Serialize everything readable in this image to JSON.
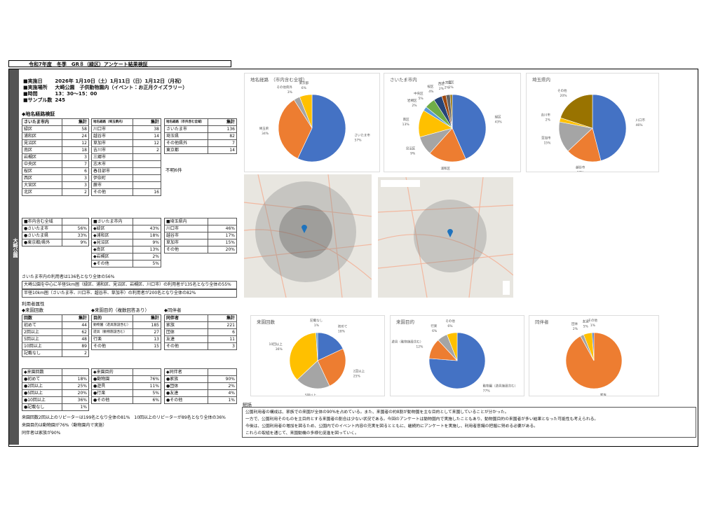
{
  "header": {
    "title": "令和7年度　冬季　GR８（緑区）アンケート結果検証"
  },
  "side_label": "大崎公園",
  "info": [
    {
      "label": "■実施日",
      "value": "2026年 1月10日（土）1月11日（日）1月12日（月祝）"
    },
    {
      "label": "■実施場所",
      "value": "大崎公園　子供動物園内（イベント：お正月クイズラリー）"
    },
    {
      "label": "■時間",
      "value": "13：30〜15：00"
    },
    {
      "label": "■サンプル数",
      "value": "245"
    }
  ],
  "route_heading": "◆地名経路検証",
  "count_tables": [
    {
      "columns": [
        "さいたま市内",
        "集計"
      ],
      "rows": [
        [
          "緑区",
          58
        ],
        [
          "浦和区",
          24
        ],
        [
          "見沼区",
          12
        ],
        [
          "南区",
          18
        ],
        [
          "岩槻区",
          3
        ],
        [
          "中央区",
          7
        ],
        [
          "桜区",
          6
        ],
        [
          "西区",
          3
        ],
        [
          "大宮区",
          3
        ],
        [
          "北区",
          2
        ]
      ]
    },
    {
      "columns": [
        "地名経路（埼玉県内）",
        "集計"
      ],
      "rows": [
        [
          "川口市",
          38
        ],
        [
          "越谷市",
          14
        ],
        [
          "草加市",
          12
        ],
        [
          "吉川市",
          2
        ],
        [
          "三郷市",
          null
        ],
        [
          "志木市",
          null
        ],
        [
          "春日部市",
          null
        ],
        [
          "伊奈町",
          null
        ],
        [
          "蕨市",
          null
        ],
        [
          "その他",
          16
        ]
      ]
    },
    {
      "columns": [
        "地名経路（市外含む全域）",
        "集計"
      ],
      "rows": [
        [
          "さいたま市",
          136
        ],
        [
          "埼玉県",
          82
        ],
        [
          "その他県外",
          7
        ],
        [
          "東京都",
          14
        ]
      ]
    }
  ],
  "unknown_note": "不明6件",
  "percent_tables": [
    {
      "title": "■市内含む全域",
      "rows": [
        [
          "●さいたま市",
          "56%"
        ],
        [
          "●さいたま県",
          "33%"
        ],
        [
          "●東京都/県外",
          "9%"
        ]
      ]
    },
    {
      "title": "■さいたま市内",
      "rows": [
        [
          "◆緑区",
          "43%"
        ],
        [
          "◆浦和区",
          "18%"
        ],
        [
          "◆見沼区",
          "9%"
        ],
        [
          "◆南区",
          "13%"
        ],
        [
          "◆岩槻区",
          "2%"
        ],
        [
          "◆その他",
          "5%"
        ]
      ]
    },
    {
      "title": "■埼玉県内",
      "rows": [
        [
          "川口市",
          "46%"
        ],
        [
          "越谷市",
          "17%"
        ],
        [
          "草加市",
          "15%"
        ],
        [
          "その他",
          "20%"
        ]
      ]
    }
  ],
  "route_notes": [
    "さいたま市内の利用者は136名となり全体の56%",
    "大崎公園を中心に半径5km圏（緑区、浦和区、見沼区、岩槻区、川口市）の利用者が135名となり全体の55%",
    "半径10km圏（さいたま市、川口市、越谷市、草加市）の利用者が200名となり全体の82%"
  ],
  "attr_heading": "利用者属性",
  "attr_count_tables": [
    {
      "title": "◆来園回数",
      "columns": [
        "回数",
        "集計"
      ],
      "rows": [
        [
          "初めて",
          44
        ],
        [
          "2回以上",
          62
        ],
        [
          "5回以上",
          48
        ],
        [
          "10回以上",
          89
        ],
        [
          "記載なし",
          2
        ]
      ]
    },
    {
      "title": "◆来園目的（複数回答あり）",
      "columns": [
        "目的",
        "集計"
      ],
      "rows": [
        [
          "動物園（遊具施設含む）",
          185
        ],
        [
          "遊具（動物施設含む）",
          27
        ],
        [
          "行楽",
          13
        ],
        [
          "その他",
          15
        ]
      ]
    },
    {
      "title": "◆同伴者",
      "columns": [
        "同伴者",
        "集計"
      ],
      "rows": [
        [
          "家族",
          221
        ],
        [
          "団体",
          6
        ],
        [
          "友達",
          11
        ],
        [
          "その他",
          3
        ]
      ]
    }
  ],
  "attr_percent_tables": [
    {
      "title": "◆来園回数",
      "rows": [
        [
          "●初めて",
          "18%"
        ],
        [
          "●2回以上",
          "25%"
        ],
        [
          "●5回以上",
          "20%"
        ],
        [
          "●10回以上",
          "36%"
        ],
        [
          "●記載なし",
          "1%"
        ]
      ]
    },
    {
      "title": "◆来園目的",
      "rows": [
        [
          "●動物園",
          "76%"
        ],
        [
          "●遊具",
          "11%"
        ],
        [
          "●行楽",
          "5%"
        ],
        [
          "●その他",
          "6%"
        ]
      ]
    },
    {
      "title": "◆同伴者",
      "rows": [
        [
          "●家族",
          "90%"
        ],
        [
          "●団体",
          "2%"
        ],
        [
          "●友達",
          "4%"
        ],
        [
          "●その他",
          "1%"
        ]
      ]
    }
  ],
  "attr_notes": [
    "来園回数2回以上のリピーターは199名となり全体の81%　10回以上のリピーターが89名となり全体の36%",
    "来園目的は動物園が76%（動物園内で実施）",
    "同伴者は家族が90%"
  ],
  "summary": {
    "title": "総括",
    "lines": [
      "公園利用者の構成は、家族での来園が全体の90%を占めている。また、来園者の約8割が動物園を主な目的として来園していることが分かった。",
      "一方で、公園利用そのものを主目的とする来園者の割合は少ない状況である。今回のアンケートは動物園内で実施したこともあり、動物園目的の来園者が多い結果となった可能性も考えられる。",
      "今後は、公園利用者の増加を図るため、公園内でのイベント内容の充実を図るとともに、継続的にアンケートを実施し、利用者意識の把握に努める必要がある。",
      "これらの取組を通じて、来園動機の多様化促進を図っていく。"
    ]
  },
  "chart_data": [
    {
      "type": "pie",
      "title": "地名経路　（市内含む全域）",
      "categories": [
        "さいたま市",
        "埼玉県",
        "その他県外",
        "東京都"
      ],
      "values": [
        57,
        34,
        3,
        6
      ],
      "value_labels": [
        "57%",
        "34%",
        "3%",
        "6%"
      ],
      "colors": [
        "#4472c4",
        "#ed7d31",
        "#a5a5a5",
        "#ffc000"
      ]
    },
    {
      "type": "pie",
      "title": "さいたま市内",
      "categories": [
        "緑区",
        "浦和区",
        "見沼区",
        "南区",
        "岩槻区",
        "中央区",
        "桜区",
        "西区",
        "大宮区",
        "北区"
      ],
      "values": [
        43,
        18,
        9,
        13,
        2,
        5,
        4,
        2,
        2,
        1
      ],
      "value_labels": [
        "43%",
        "18%",
        "9%",
        "13%",
        "2%",
        "5%",
        "4%",
        "2%",
        "2%",
        "1%"
      ],
      "colors": [
        "#4472c4",
        "#ed7d31",
        "#a5a5a5",
        "#ffc000",
        "#5b9bd5",
        "#70ad47",
        "#264478",
        "#9e480e",
        "#636363",
        "#997300"
      ]
    },
    {
      "type": "pie",
      "title": "埼玉県内",
      "categories": [
        "川口市",
        "越谷市",
        "草加市",
        "吉川市",
        "その他"
      ],
      "values": [
        46,
        17,
        15,
        2,
        20
      ],
      "value_labels": [
        "46%",
        "17%",
        "15%",
        "2%",
        "20%"
      ],
      "colors": [
        "#4472c4",
        "#ed7d31",
        "#a5a5a5",
        "#ffc000",
        "#997300"
      ]
    },
    {
      "type": "pie",
      "title": "来園回数",
      "categories": [
        "初めて",
        "2回以上",
        "5回以上",
        "10回以上",
        "記載なし"
      ],
      "values": [
        18,
        25,
        20,
        36,
        1
      ],
      "value_labels": [
        "18%",
        "25%",
        "20%",
        "36%",
        "1%"
      ],
      "colors": [
        "#4472c4",
        "#ed7d31",
        "#a5a5a5",
        "#ffc000",
        "#5b9bd5"
      ]
    },
    {
      "type": "pie",
      "title": "来園目的",
      "categories": [
        "動物園（遊具施設含む）",
        "遊具（動物施設含む）",
        "行楽",
        "その他"
      ],
      "values": [
        77,
        12,
        6,
        6
      ],
      "value_labels": [
        "77%",
        "12%",
        "6%",
        "6%"
      ],
      "colors": [
        "#4472c4",
        "#ed7d31",
        "#a5a5a5",
        "#ffc000"
      ]
    },
    {
      "type": "pie",
      "title": "同伴者",
      "categories": [
        "家族",
        "団体",
        "友達",
        "その他"
      ],
      "values": [
        92,
        2,
        5,
        1
      ],
      "value_labels": [
        "92%",
        "2%",
        "5%",
        "1%"
      ],
      "colors": [
        "#ed7d31",
        "#a5a5a5",
        "#ffc000",
        "#4472c4"
      ]
    }
  ]
}
